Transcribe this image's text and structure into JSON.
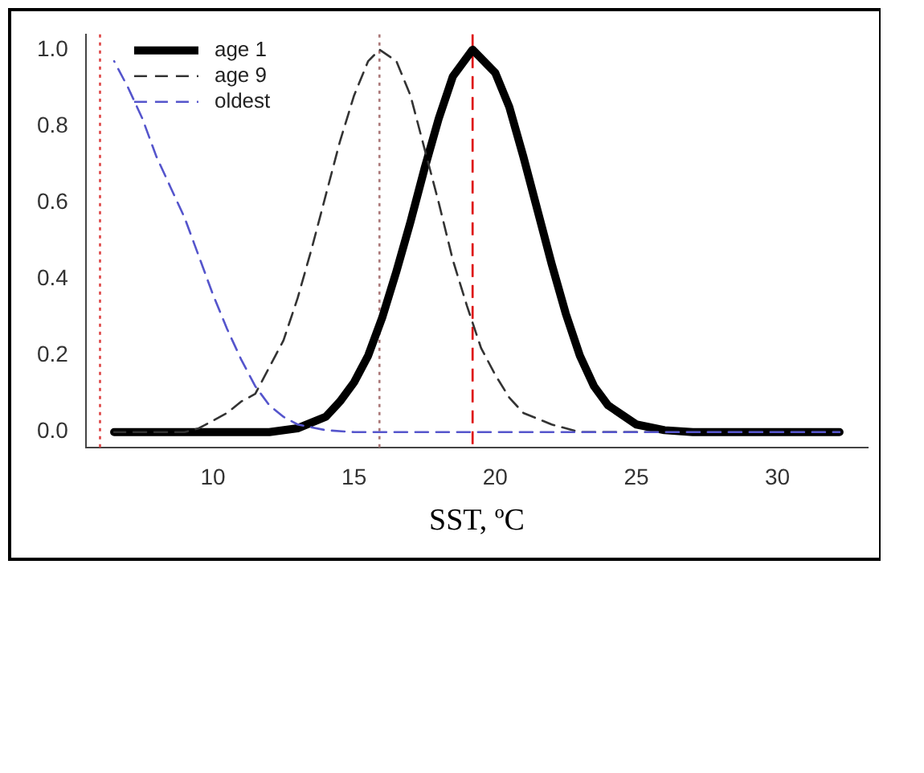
{
  "chart_data": {
    "type": "line",
    "xlabel": "SST, ºC",
    "xlim": [
      5.5,
      33.2
    ],
    "xticks": [
      10,
      15,
      20,
      25,
      30
    ],
    "ylim": [
      -0.04,
      1.04
    ],
    "yticks": [
      {
        "value": 0,
        "label": "0.0"
      },
      {
        "value": 0.2,
        "label": "0.2"
      },
      {
        "value": 0.4,
        "label": "0.4"
      },
      {
        "value": 0.6,
        "label": "0.6"
      },
      {
        "value": 0.8,
        "label": "0.8"
      },
      {
        "value": 1,
        "label": "1.0"
      }
    ],
    "grid": false,
    "legend": "top left",
    "marker": "none",
    "series": [
      {
        "name": "age 1",
        "color": "#000000",
        "line_style": "solid",
        "x": [
          6.5,
          12,
          13,
          14,
          14.5,
          15,
          15.5,
          16,
          16.5,
          17,
          17.5,
          18,
          18.5,
          19.2,
          20,
          20.5,
          21,
          21.5,
          22,
          22.5,
          23,
          23.5,
          24,
          25,
          26,
          27,
          32.2
        ],
        "values": [
          0,
          0,
          0.01,
          0.04,
          0.08,
          0.13,
          0.2,
          0.3,
          0.42,
          0.55,
          0.69,
          0.82,
          0.93,
          1,
          0.94,
          0.85,
          0.72,
          0.58,
          0.44,
          0.31,
          0.2,
          0.12,
          0.07,
          0.02,
          0.005,
          0,
          0
        ]
      },
      {
        "name": "age 9",
        "color": "#333333",
        "line_style": "dashed",
        "x": [
          6.5,
          9,
          9.5,
          10,
          10.5,
          11,
          11.5,
          12,
          12.5,
          13,
          13.5,
          14,
          14.5,
          15,
          15.5,
          15.9,
          16.5,
          17,
          17.5,
          18,
          18.5,
          19,
          19.5,
          20,
          20.5,
          21,
          22,
          23,
          32.2
        ],
        "values": [
          0,
          0,
          0.01,
          0.03,
          0.05,
          0.08,
          0.1,
          0.17,
          0.24,
          0.35,
          0.48,
          0.62,
          0.76,
          0.88,
          0.97,
          1,
          0.97,
          0.88,
          0.74,
          0.6,
          0.45,
          0.33,
          0.22,
          0.15,
          0.09,
          0.05,
          0.02,
          0,
          0
        ]
      },
      {
        "name": "oldest",
        "color": "#5555cc",
        "line_style": "dashed",
        "x": [
          6.5,
          7,
          7.5,
          8,
          8.5,
          9,
          9.5,
          10,
          10.5,
          11,
          11.5,
          12,
          12.5,
          13,
          14,
          15,
          20,
          25,
          32.2
        ],
        "values": [
          0.97,
          0.9,
          0.82,
          0.72,
          0.64,
          0.56,
          0.46,
          0.36,
          0.27,
          0.19,
          0.12,
          0.07,
          0.04,
          0.02,
          0.005,
          0,
          0,
          0,
          0
        ]
      }
    ],
    "ref_lines": [
      {
        "axis": "x",
        "value": 6,
        "color": "#dd4444",
        "line_style": "dotted"
      },
      {
        "axis": "x",
        "value": 15.9,
        "color": "#aa7777",
        "line_style": "dotted"
      },
      {
        "axis": "x",
        "value": 19.2,
        "color": "#dd0000",
        "line_style": "dashed"
      }
    ]
  }
}
